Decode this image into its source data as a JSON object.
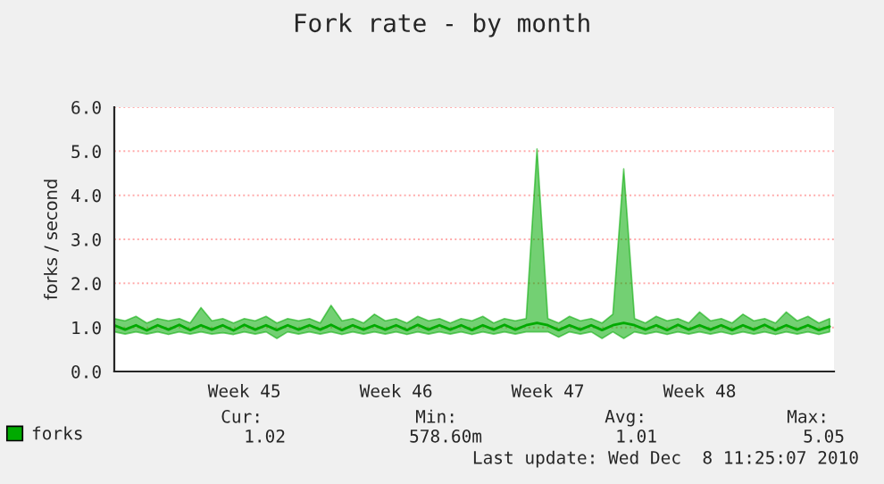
{
  "chart_data": {
    "type": "line",
    "title": "Fork rate - by month",
    "ylabel": "forks / second",
    "categories": [
      null,
      null,
      null,
      null,
      null,
      null,
      null,
      null,
      null,
      null,
      null,
      null,
      "Week 45",
      null,
      null,
      null,
      null,
      null,
      null,
      null,
      null,
      null,
      null,
      null,
      null,
      null,
      "Week 46",
      null,
      null,
      null,
      null,
      null,
      null,
      null,
      null,
      null,
      null,
      null,
      null,
      null,
      "Week 47",
      null,
      null,
      null,
      null,
      null,
      null,
      null,
      null,
      null,
      null,
      null,
      null,
      null,
      "Week 48",
      null,
      null,
      null,
      null,
      null,
      null,
      null,
      null,
      null,
      null,
      null,
      null
    ],
    "series": [
      {
        "name": "forks",
        "color": "#00aa00",
        "values": [
          1.05,
          0.95,
          1.05,
          0.93,
          1.05,
          0.95,
          1.06,
          0.94,
          1.05,
          0.95,
          1.05,
          0.93,
          1.06,
          0.95,
          1.05,
          0.94,
          1.05,
          0.95,
          1.05,
          0.95,
          1.06,
          0.94,
          1.05,
          0.95,
          1.05,
          0.95,
          1.05,
          0.94,
          1.06,
          0.95,
          1.05,
          0.95,
          1.05,
          0.94,
          1.05,
          0.95,
          1.06,
          0.95,
          1.05,
          1.1,
          1.05,
          0.94,
          1.05,
          0.95,
          1.05,
          0.94,
          1.05,
          1.1,
          1.05,
          0.95,
          1.05,
          0.94,
          1.06,
          0.95,
          1.05,
          0.95,
          1.05,
          0.94,
          1.05,
          0.95,
          1.06,
          0.94,
          1.05,
          0.95,
          1.05,
          0.94,
          1.02
        ],
        "lower": [
          0.9,
          0.85,
          0.9,
          0.85,
          0.9,
          0.84,
          0.9,
          0.85,
          0.9,
          0.85,
          0.88,
          0.84,
          0.9,
          0.85,
          0.9,
          0.75,
          0.9,
          0.85,
          0.9,
          0.85,
          0.9,
          0.84,
          0.9,
          0.85,
          0.9,
          0.85,
          0.9,
          0.84,
          0.9,
          0.85,
          0.9,
          0.85,
          0.9,
          0.84,
          0.9,
          0.85,
          0.9,
          0.85,
          0.9,
          0.9,
          0.9,
          0.78,
          0.9,
          0.85,
          0.9,
          0.75,
          0.9,
          0.75,
          0.9,
          0.85,
          0.9,
          0.84,
          0.9,
          0.85,
          0.9,
          0.85,
          0.9,
          0.84,
          0.9,
          0.85,
          0.9,
          0.84,
          0.9,
          0.85,
          0.9,
          0.84,
          0.9
        ],
        "upper": [
          1.2,
          1.15,
          1.25,
          1.1,
          1.2,
          1.15,
          1.2,
          1.1,
          1.45,
          1.15,
          1.2,
          1.1,
          1.2,
          1.15,
          1.25,
          1.1,
          1.2,
          1.15,
          1.2,
          1.1,
          1.5,
          1.15,
          1.2,
          1.1,
          1.3,
          1.15,
          1.2,
          1.1,
          1.25,
          1.15,
          1.2,
          1.1,
          1.2,
          1.15,
          1.25,
          1.1,
          1.2,
          1.15,
          1.2,
          5.05,
          1.2,
          1.1,
          1.25,
          1.15,
          1.2,
          1.1,
          1.3,
          4.6,
          1.2,
          1.1,
          1.25,
          1.15,
          1.2,
          1.1,
          1.35,
          1.15,
          1.2,
          1.1,
          1.3,
          1.15,
          1.2,
          1.1,
          1.35,
          1.15,
          1.25,
          1.1,
          1.2
        ]
      }
    ],
    "ylim": [
      0,
      6
    ],
    "yticks": [
      {
        "value": 0,
        "label": "0.0"
      },
      {
        "value": 1,
        "label": "1.0"
      },
      {
        "value": 2,
        "label": "2.0"
      },
      {
        "value": 3,
        "label": "3.0"
      },
      {
        "value": 4,
        "label": "4.0"
      },
      {
        "value": 5,
        "label": "5.0"
      },
      {
        "value": 6,
        "label": "6.0"
      }
    ],
    "grid": "y",
    "legend": "bottom left",
    "line_style": "solid",
    "annotations": [
      "Cur:",
      "Min:",
      "Avg:",
      "Max:",
      "1.02",
      "578.60m",
      "1.01",
      "5.05",
      "Last update: Wed Dec  8 11:25:07 2010"
    ]
  }
}
